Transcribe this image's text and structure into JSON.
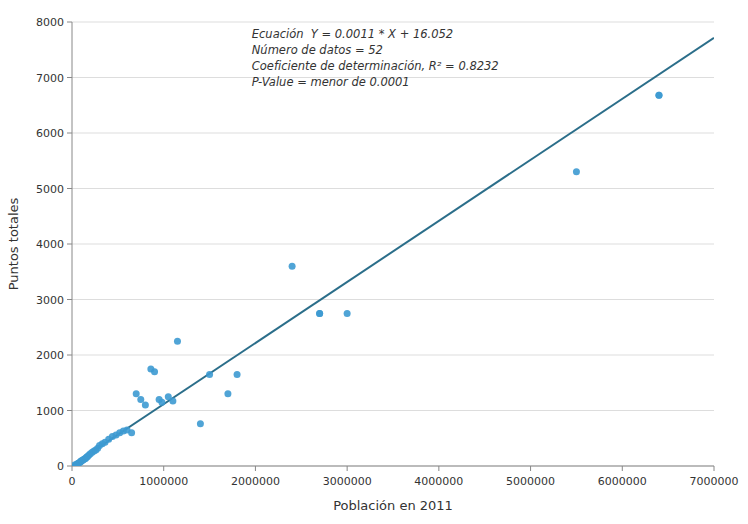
{
  "chart_data": {
    "type": "scatter",
    "xlabel": "Población en 2011",
    "ylabel": "Puntos totales",
    "annotations": [
      "Ecuación  Y = 0.0011 * X + 16.052",
      "Número de datos = 52",
      "Coeficiente de determinación, R² = 0.8232",
      "P-Value = menor de 0.0001"
    ],
    "series": [
      {
        "type": "scatter",
        "color": "#3d9ad1",
        "x": [
          30000,
          50000,
          60000,
          70000,
          80000,
          90000,
          95000,
          100000,
          110000,
          120000,
          130000,
          140000,
          150000,
          160000,
          170000,
          185000,
          200000,
          220000,
          240000,
          260000,
          280000,
          300000,
          330000,
          360000,
          400000,
          440000,
          480000,
          520000,
          560000,
          600000,
          650000,
          700000,
          750000,
          800000,
          860000,
          900000,
          950000,
          980000,
          1050000,
          1100000,
          1150000,
          1400000,
          1500000,
          1700000,
          1800000,
          2400000,
          2700000,
          2700000,
          3000000,
          5500000,
          6400000,
          6400000
        ],
        "values": [
          20,
          30,
          40,
          50,
          60,
          70,
          80,
          90,
          100,
          110,
          120,
          130,
          140,
          160,
          170,
          200,
          220,
          250,
          270,
          290,
          320,
          370,
          400,
          430,
          480,
          530,
          560,
          600,
          630,
          650,
          600,
          1300,
          1200,
          1100,
          1750,
          1700,
          1200,
          1150,
          1250,
          1170,
          2250,
          760,
          1650,
          1300,
          1650,
          3600,
          2750,
          2750,
          2750,
          5300,
          6680,
          6680
        ]
      },
      {
        "type": "line",
        "color": "#2b6e8a",
        "x": [
          0,
          7000000
        ],
        "values": [
          16.052,
          7716.052
        ]
      }
    ],
    "xlim": [
      0,
      7000000
    ],
    "ylim": [
      0,
      8000
    ],
    "xticks": [
      0,
      1000000,
      2000000,
      3000000,
      4000000,
      5000000,
      6000000,
      7000000
    ],
    "yticks": [
      0,
      1000,
      2000,
      3000,
      4000,
      5000,
      6000,
      7000,
      8000
    ],
    "grid": "y"
  }
}
